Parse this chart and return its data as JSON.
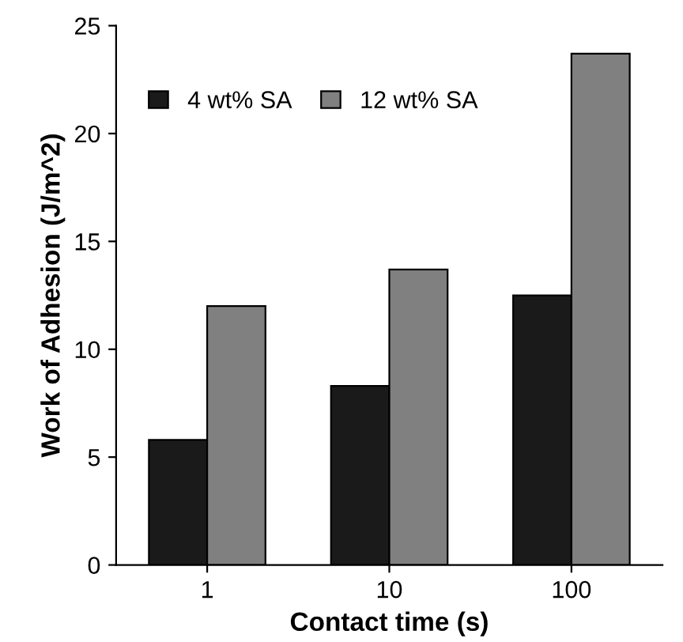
{
  "chart_data": {
    "type": "bar",
    "xlabel": "Contact time (s)",
    "ylabel": "Work of Adhesion (J/m^2)",
    "categories": [
      "1",
      "10",
      "100"
    ],
    "series": [
      {
        "name": "4 wt% SA",
        "color": "#1a1a1a",
        "values": [
          5.8,
          8.3,
          12.5
        ]
      },
      {
        "name": "12 wt% SA",
        "color": "#808080",
        "values": [
          12.0,
          13.7,
          23.7
        ]
      }
    ],
    "ylim": [
      0,
      25
    ],
    "yticks": [
      0,
      5,
      10,
      15,
      20,
      25
    ],
    "grid": false,
    "legend": "top left"
  }
}
